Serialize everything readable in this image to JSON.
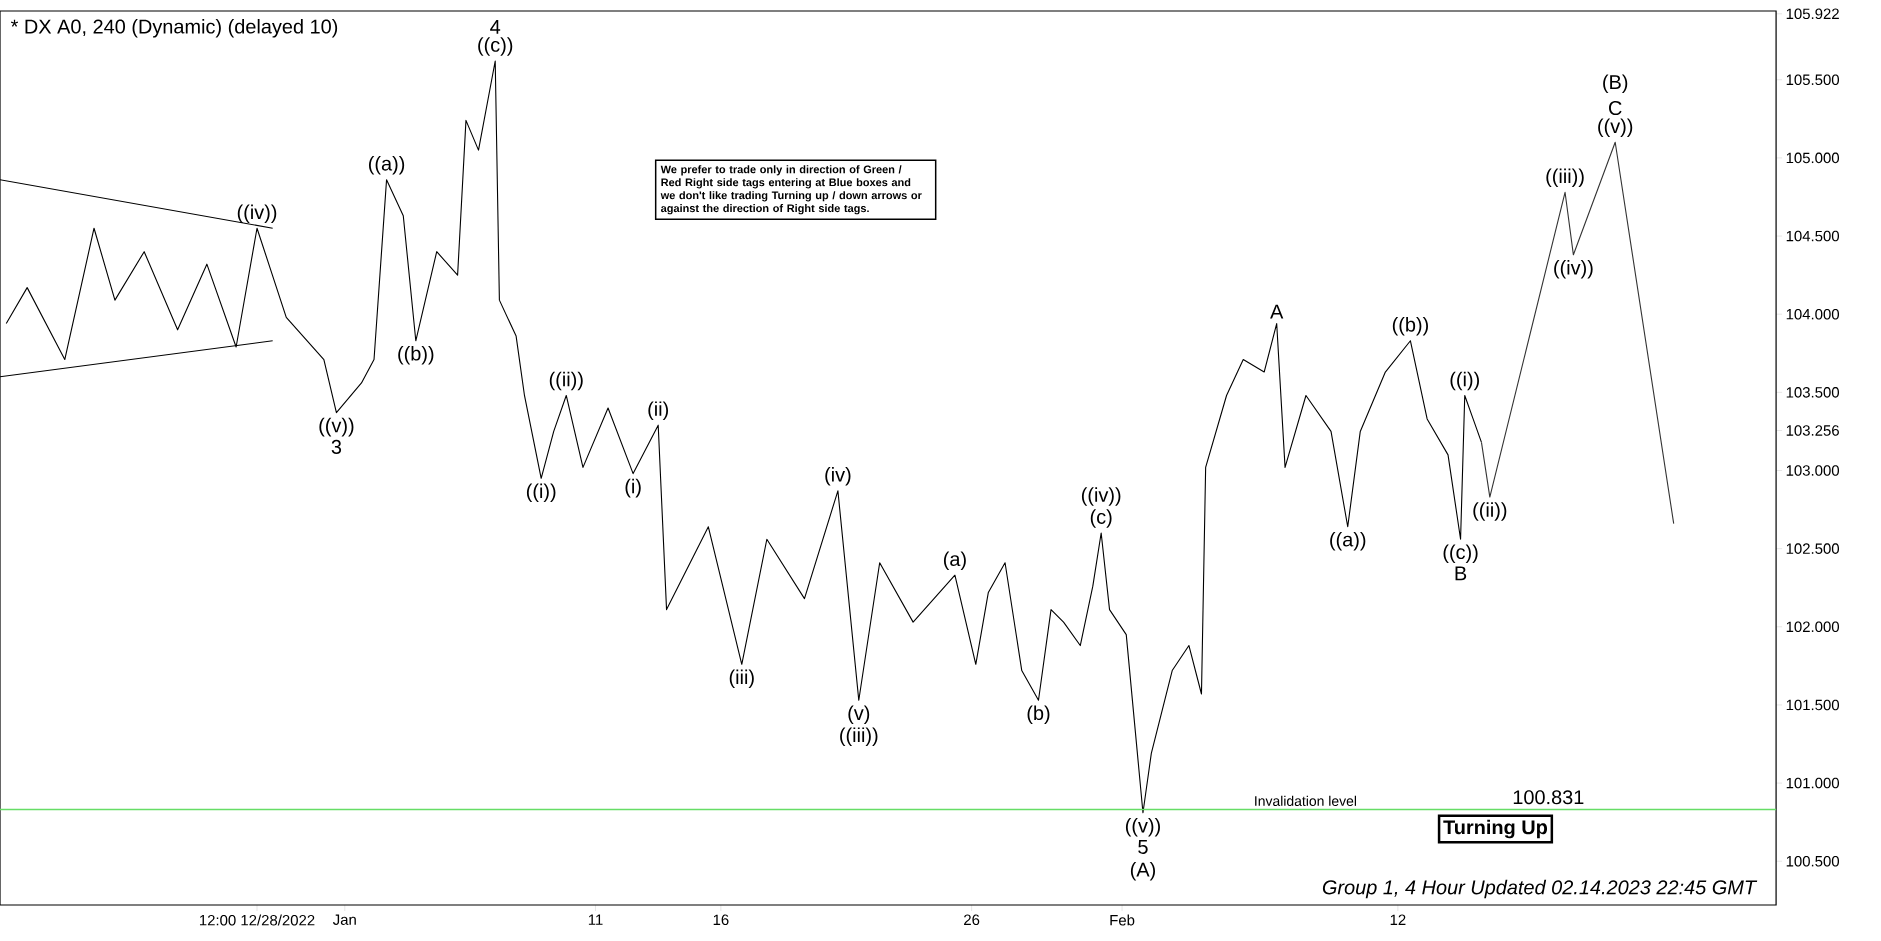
{
  "chart_data": {
    "type": "line",
    "title": "* DX A0, 240 (Dynamic) (delayed 10)",
    "series": [
      {
        "color": "#000000",
        "x": [
          "2022-12-18T12:00",
          "2022-12-19T08:00",
          "2022-12-20T20:00",
          "2022-12-22T00:00",
          "2022-12-22T20:00",
          "2022-12-24T00:00",
          "2022-12-25T08:00",
          "2022-12-26T12:00",
          "2022-12-27T16:00",
          "2022-12-28T12:00",
          "2022-12-29T16:00",
          "2022-12-31T04:00",
          "2022-12-31T16:00",
          "2023-01-01T16:00",
          "2023-01-02T04:00",
          "2023-01-02T16:00",
          "2023-01-03T08:00",
          "2023-01-03T20:00",
          "2023-01-04T16:00",
          "2023-01-05T12:00",
          "2023-01-05T20:00",
          "2023-01-06T08:00",
          "2023-01-07T00:00",
          "2023-01-07T04:00",
          "2023-01-07T20:00",
          "2023-01-08T04:00",
          "2023-01-08T20:00",
          "2023-01-09T08:00",
          "2023-01-09T20:00",
          "2023-01-10T12:00",
          "2023-01-11T12:00",
          "2023-01-12T12:00",
          "2023-01-13T12:00",
          "2023-01-13T20:00",
          "2023-01-15T12:00",
          "2023-01-16T20:00",
          "2023-01-17T20:00",
          "2023-01-19T08:00",
          "2023-01-20T16:00",
          "2023-01-21T12:00",
          "2023-01-22T08:00",
          "2023-01-23T16:00",
          "2023-01-25T08:00",
          "2023-01-26T04:00",
          "2023-01-26T16:00",
          "2023-01-27T08:00",
          "2023-01-28T00:00",
          "2023-01-28T16:00",
          "2023-01-29T04:00",
          "2023-01-29T16:00",
          "2023-01-30T08:00",
          "2023-01-30T20:00",
          "2023-01-31T04:00",
          "2023-01-31T12:00",
          "2023-02-01T04:00",
          "2023-02-01T20:00",
          "2023-02-02T04:00",
          "2023-02-03T00:00",
          "2023-02-03T16:00",
          "2023-02-04T04:00",
          "2023-02-04T08:00",
          "2023-02-05T04:00",
          "2023-02-05T20:00",
          "2023-02-06T16:00",
          "2023-02-07T04:00",
          "2023-02-07T12:00",
          "2023-02-08T08:00",
          "2023-02-09T08:00",
          "2023-02-10T00:00",
          "2023-02-10T12:00",
          "2023-02-11T12:00",
          "2023-02-12T12:00",
          "2023-02-13T04:00",
          "2023-02-14T00:00",
          "2023-02-14T12:00",
          "2023-02-14T16:00",
          "2023-02-15T00:00",
          "2023-02-15T08:00"
        ],
        "values": [
          103.94,
          104.17,
          103.71,
          104.55,
          104.09,
          104.4,
          103.9,
          104.32,
          103.79,
          104.55,
          103.98,
          103.71,
          103.37,
          103.56,
          103.71,
          104.86,
          104.63,
          103.83,
          104.4,
          104.25,
          105.24,
          105.05,
          105.62,
          104.09,
          103.86,
          103.48,
          102.95,
          103.25,
          103.48,
          103.02,
          103.4,
          102.98,
          103.29,
          102.11,
          102.64,
          101.76,
          102.56,
          102.18,
          102.87,
          101.53,
          102.41,
          102.03,
          102.33,
          101.76,
          102.22,
          102.41,
          101.72,
          101.53,
          102.11,
          102.03,
          101.88,
          102.26,
          102.6,
          102.11,
          101.95,
          100.81,
          101.19,
          101.72,
          101.88,
          101.57,
          103.02,
          103.48,
          103.71,
          103.63,
          103.94,
          103.02,
          103.48,
          103.25,
          102.64,
          103.25,
          103.63,
          103.83,
          103.33,
          103.1,
          102.56,
          103.48,
          103.33,
          103.18
        ]
      },
      {
        "color": "#333333",
        "x": [
          "2023-02-15T08:00",
          "2023-02-15T16:00",
          "2023-02-18T16:00",
          "2023-02-19T00:00",
          "2023-02-20T16:00",
          "2023-02-23T00:00"
        ],
        "values": [
          103.18,
          102.83,
          104.78,
          104.38,
          105.1,
          102.66
        ]
      },
      {
        "color": "#000000",
        "x": [
          "2022-12-18T06:00",
          "2022-12-29T03:00"
        ],
        "values": [
          104.86,
          104.55
        ]
      },
      {
        "color": "#000000",
        "x": [
          "2022-12-18T06:00",
          "2022-12-29T03:00"
        ],
        "values": [
          103.6,
          103.83
        ]
      }
    ],
    "xlim": [
      "2022-12-18T06:00",
      "2023-02-27T02:00"
    ],
    "ylim": [
      100.22,
      105.94
    ],
    "xticks": [
      {
        "value": "2022-12-28T12:00",
        "label": "12:00 12/28/2022"
      },
      {
        "value": "2023-01-01",
        "label": "Jan"
      },
      {
        "value": "2023-01-11",
        "label": "11"
      },
      {
        "value": "2023-01-16",
        "label": "16"
      },
      {
        "value": "2023-01-26",
        "label": "26"
      },
      {
        "value": "2023-02-01",
        "label": "Feb"
      },
      {
        "value": "2023-02-12",
        "label": "12"
      }
    ],
    "yticks": [
      {
        "value": 100.5,
        "label": "100.500"
      },
      {
        "value": 101.0,
        "label": "101.000"
      },
      {
        "value": 101.5,
        "label": "101.500"
      },
      {
        "value": 102.0,
        "label": "102.000"
      },
      {
        "value": 102.5,
        "label": "102.500"
      },
      {
        "value": 103.0,
        "label": "103.000"
      },
      {
        "value": 103.256,
        "label": "103.256"
      },
      {
        "value": 103.5,
        "label": "103.500"
      },
      {
        "value": 104.0,
        "label": "104.000"
      },
      {
        "value": 104.5,
        "label": "104.500"
      },
      {
        "value": 105.0,
        "label": "105.000"
      },
      {
        "value": 105.5,
        "label": "105.500"
      },
      {
        "value": 105.922,
        "label": "105.922"
      }
    ],
    "ref_lines": [
      {
        "axis": "y",
        "value": 100.831,
        "label": "Invalidation level",
        "color": "#66dd66"
      }
    ],
    "annotations": [
      {
        "text": "((iv))",
        "x": "2022-12-28T12:00",
        "y": 104.55
      },
      {
        "text": "((v))",
        "x": "2022-12-31T16:00",
        "y": 103.37
      },
      {
        "text": "3",
        "x": "2022-12-31T16:00",
        "y": 103.37
      },
      {
        "text": "((a))",
        "x": "2023-01-02T16:00",
        "y": 104.86
      },
      {
        "text": "((b))",
        "x": "2023-01-03T20:00",
        "y": 103.83
      },
      {
        "text": "((c))",
        "x": "2023-01-07T00:00",
        "y": 105.62
      },
      {
        "text": "4",
        "x": "2023-01-07T00:00",
        "y": 105.62
      },
      {
        "text": "((i))",
        "x": "2023-01-08T20:00",
        "y": 102.95
      },
      {
        "text": "((ii))",
        "x": "2023-01-09T20:00",
        "y": 103.48
      },
      {
        "text": "(i)",
        "x": "2023-01-12T12:00",
        "y": 102.98
      },
      {
        "text": "(ii)",
        "x": "2023-01-13T12:00",
        "y": 103.29
      },
      {
        "text": "(iii)",
        "x": "2023-01-16T20:00",
        "y": 101.76
      },
      {
        "text": "(iv)",
        "x": "2023-01-20T16:00",
        "y": 102.87
      },
      {
        "text": "(v)",
        "x": "2023-01-21T12:00",
        "y": 101.53
      },
      {
        "text": "((iii))",
        "x": "2023-01-21T12:00",
        "y": 101.53
      },
      {
        "text": "(a)",
        "x": "2023-01-25T08:00",
        "y": 102.33
      },
      {
        "text": "(b)",
        "x": "2023-01-28T16:00",
        "y": 101.53
      },
      {
        "text": "(c)",
        "x": "2023-01-31T04:00",
        "y": 102.6
      },
      {
        "text": "((iv))",
        "x": "2023-01-31T04:00",
        "y": 102.6
      },
      {
        "text": "((v))",
        "x": "2023-02-01T20:00",
        "y": 100.81
      },
      {
        "text": "5",
        "x": "2023-02-01T20:00",
        "y": 100.81
      },
      {
        "text": "(A)",
        "x": "2023-02-01T20:00",
        "y": 100.81
      },
      {
        "text": "A",
        "x": "2023-02-07T04:00",
        "y": 103.94
      },
      {
        "text": "((a))",
        "x": "2023-02-10T00:00",
        "y": 102.64
      },
      {
        "text": "((b))",
        "x": "2023-02-12T12:00",
        "y": 103.83
      },
      {
        "text": "((c))",
        "x": "2023-02-14T12:00",
        "y": 102.56
      },
      {
        "text": "B",
        "x": "2023-02-14T12:00",
        "y": 102.56
      },
      {
        "text": "((i))",
        "x": "2023-02-14T16:00",
        "y": 103.48
      },
      {
        "text": "((ii))",
        "x": "2023-02-15T16:00",
        "y": 102.83
      },
      {
        "text": "((iii))",
        "x": "2023-02-18T16:00",
        "y": 104.78
      },
      {
        "text": "((iv))",
        "x": "2023-02-19T00:00",
        "y": 104.38
      },
      {
        "text": "((v))",
        "x": "2023-02-20T16:00",
        "y": 105.1
      },
      {
        "text": "C",
        "x": "2023-02-20T16:00",
        "y": 105.1
      },
      {
        "text": "(B)",
        "x": "2023-02-20T16:00",
        "y": 105.1
      },
      {
        "text": "100.831",
        "x": "2023-02-18T00:00",
        "y": 100.831
      },
      "We prefer to trade only in direction of Green / Red Right side tags entering at Blue boxes and we don't like trading Turning up / down arrows or against the direction of Right side tags.",
      "Turning Up",
      "Group 1, 4 Hour Updated 02.14.2023 22:45 GMT"
    ]
  }
}
